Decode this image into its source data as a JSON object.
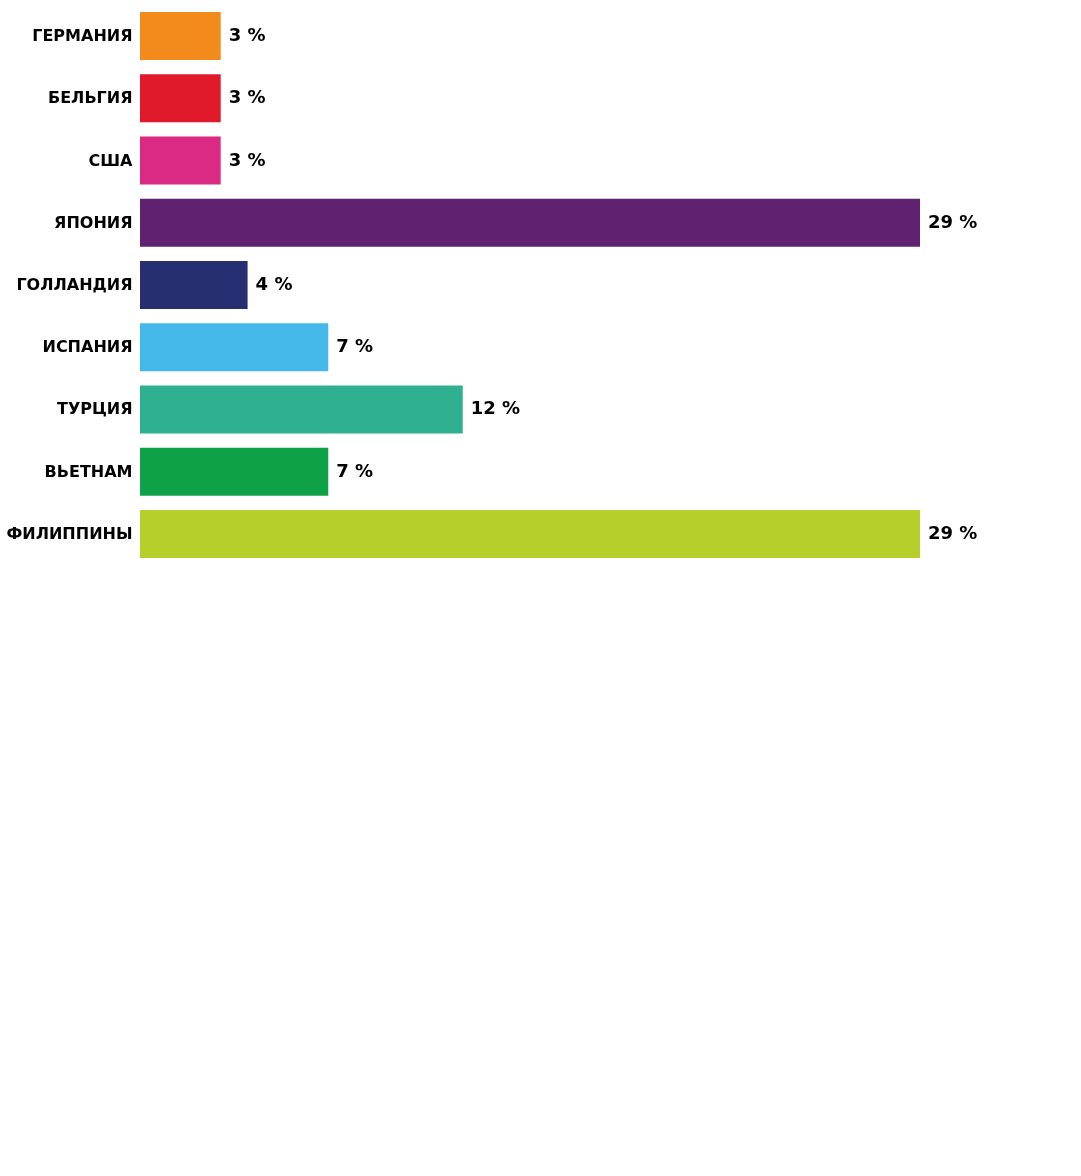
{
  "chart_data": {
    "type": "bar",
    "orientation": "horizontal",
    "categories": [
      "ГЕРМАНИЯ",
      "БЕЛЬГИЯ",
      "США",
      "ЯПОНИЯ",
      "ГОЛЛАНДИЯ",
      "ИСПАНИЯ",
      "ТУРЦИЯ",
      "ВЬЕТНАМ",
      "ФИЛИППИНЫ"
    ],
    "values": [
      3,
      3,
      3,
      29,
      4,
      7,
      12,
      7,
      29
    ],
    "value_labels": [
      "3 %",
      "3 %",
      "3 %",
      "29 %",
      "4 %",
      "7 %",
      "12 %",
      "7 %",
      "29 %"
    ],
    "colors": [
      "#f28a1c",
      "#e0192b",
      "#da2a84",
      "#5f2170",
      "#263070",
      "#45b8ea",
      "#2fb191",
      "#0fa147",
      "#b7cf2b"
    ]
  }
}
